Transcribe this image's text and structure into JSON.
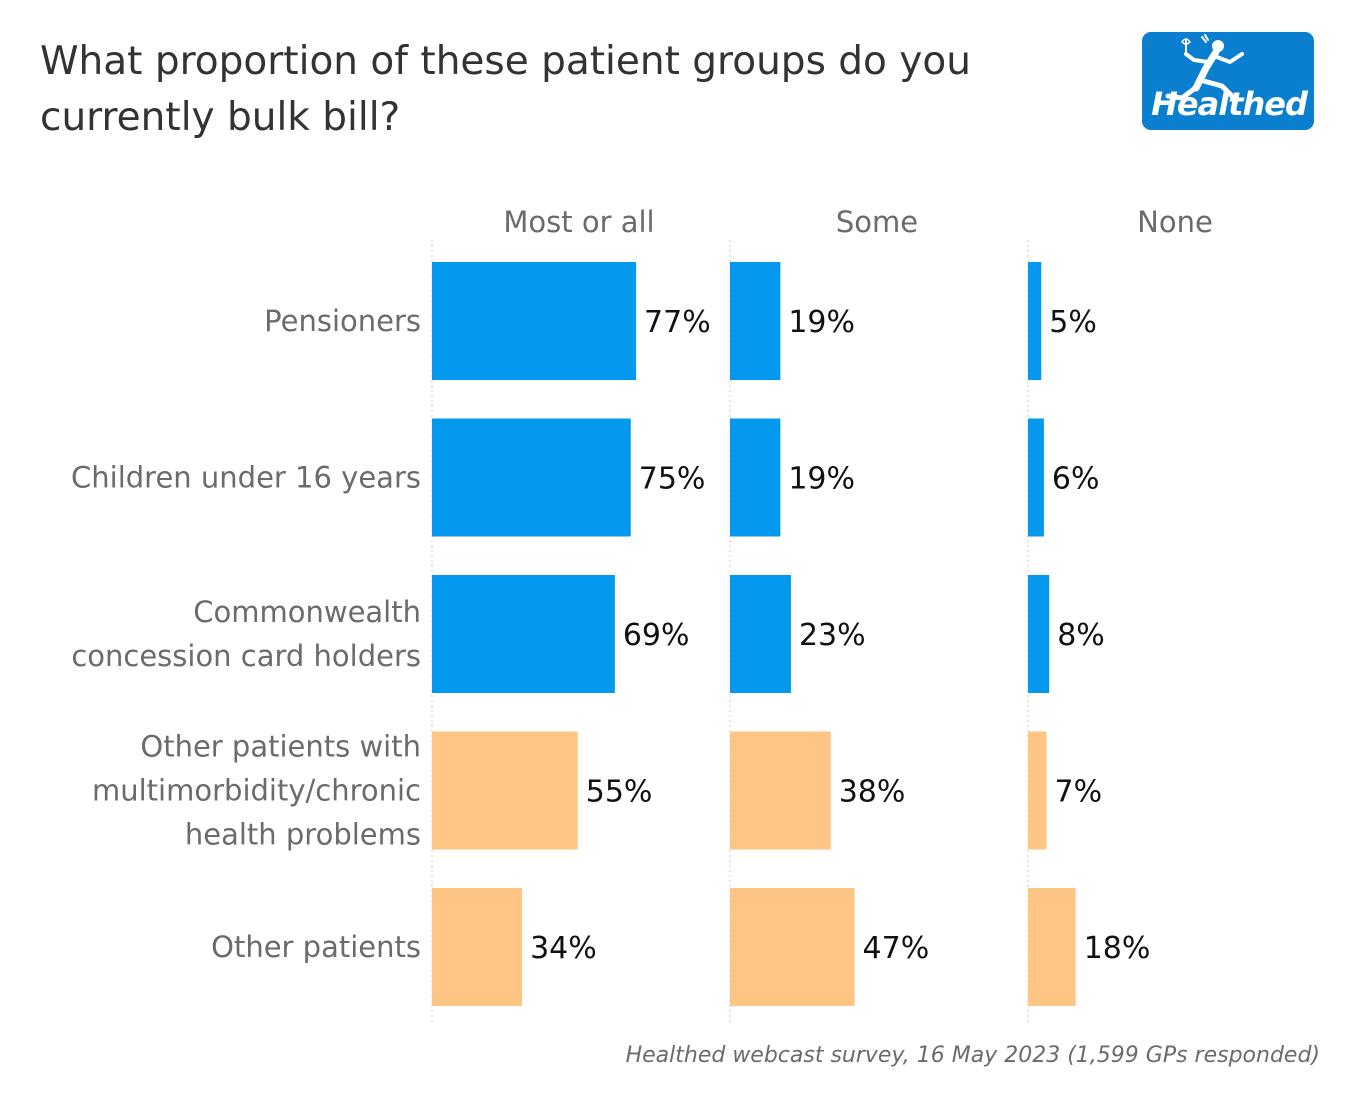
{
  "title": "What proportion of these patient groups do you currently bulk bill?",
  "logo_text": "Healthed",
  "footnote": "Healthed webcast survey, 16 May 2023 (1,599 GPs responded)",
  "colors": {
    "blue": "#0498ee",
    "orange": "#fec585",
    "logo_bg": "#0a7fcf",
    "text": "#333333",
    "label": "#6b6b6b"
  },
  "chart_data": {
    "type": "bar",
    "orientation": "horizontal",
    "panels": [
      "Most or all",
      "Some",
      "None"
    ],
    "categories": [
      "Pensioners",
      "Children under 16 years",
      "Commonwealth concession card holders",
      "Other patients with multimorbidity/chronic health problems",
      "Other patients"
    ],
    "category_lines": [
      [
        "Pensioners"
      ],
      [
        "Children under 16 years"
      ],
      [
        "Commonwealth",
        "concession card holders"
      ],
      [
        "Other patients with",
        "multimorbidity/chronic",
        "health problems"
      ],
      [
        "Other patients"
      ]
    ],
    "series": [
      {
        "name": "Most or all",
        "values": [
          77,
          75,
          69,
          55,
          34
        ],
        "labels": [
          "77%",
          "75%",
          "69%",
          "55%",
          "34%"
        ]
      },
      {
        "name": "Some",
        "values": [
          19,
          19,
          23,
          38,
          47
        ],
        "labels": [
          "19%",
          "19%",
          "23%",
          "38%",
          "47%"
        ]
      },
      {
        "name": "None",
        "values": [
          5,
          6,
          8,
          7,
          18
        ],
        "labels": [
          "5%",
          "6%",
          "8%",
          "7%",
          "18%"
        ]
      }
    ],
    "bar_colors": [
      "blue",
      "blue",
      "blue",
      "orange",
      "orange"
    ],
    "xlim": [
      0,
      100
    ],
    "grid": false,
    "legend": "none"
  }
}
